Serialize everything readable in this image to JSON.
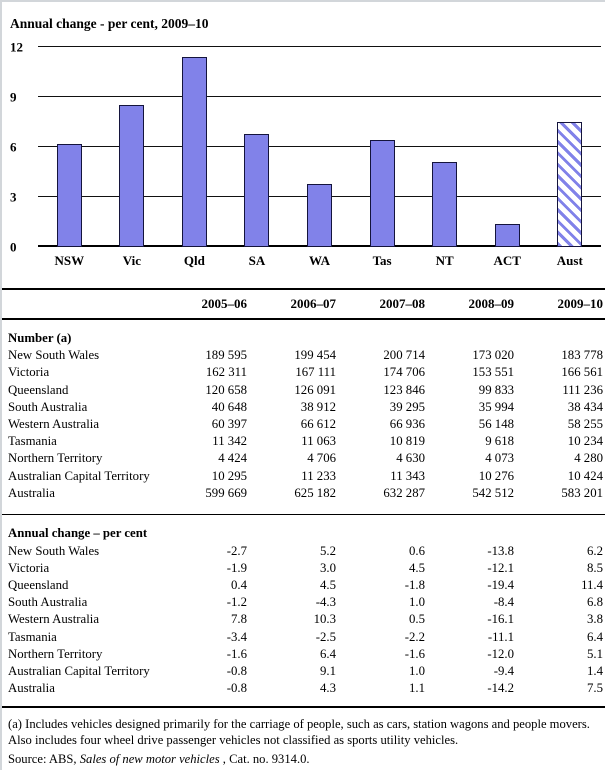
{
  "chart_data": {
    "type": "bar",
    "title": "Annual change - per cent, 2009–10",
    "categories": [
      "NSW",
      "Vic",
      "Qld",
      "SA",
      "WA",
      "Tas",
      "NT",
      "ACT",
      "Aust"
    ],
    "values": [
      6.2,
      8.5,
      11.4,
      6.8,
      3.8,
      6.4,
      5.1,
      1.4,
      7.5
    ],
    "ylim": [
      0,
      12
    ],
    "yticks": [
      0,
      3,
      6,
      9,
      12
    ],
    "xlabel": "",
    "ylabel": "",
    "grid": true,
    "legend": "none",
    "bar_color": "#8182e9",
    "hatched_category": "Aust",
    "hatch_style": "diagonal-stripes-on-white"
  },
  "table": {
    "column_headers": [
      "2005–06",
      "2006–07",
      "2007–08",
      "2008–09",
      "2009–10"
    ],
    "sections": [
      {
        "heading": "Number (a)",
        "rows": [
          {
            "label": "New South Wales",
            "values": [
              "189 595",
              "199 454",
              "200 714",
              "173 020",
              "183 778"
            ]
          },
          {
            "label": "Victoria",
            "values": [
              "162 311",
              "167 111",
              "174 706",
              "153 551",
              "166 561"
            ]
          },
          {
            "label": "Queensland",
            "values": [
              "120 658",
              "126 091",
              "123 846",
              "99 833",
              "111 236"
            ]
          },
          {
            "label": "South Australia",
            "values": [
              "40 648",
              "38 912",
              "39 295",
              "35 994",
              "38 434"
            ]
          },
          {
            "label": "Western Australia",
            "values": [
              "60 397",
              "66 612",
              "66 936",
              "56 148",
              "58 255"
            ]
          },
          {
            "label": "Tasmania",
            "values": [
              "11 342",
              "11 063",
              "10 819",
              "9 618",
              "10 234"
            ]
          },
          {
            "label": "Northern Territory",
            "values": [
              "4 424",
              "4 706",
              "4 630",
              "4 073",
              "4 280"
            ]
          },
          {
            "label": "Australian Capital Territory",
            "values": [
              "10 295",
              "11 233",
              "11 343",
              "10 276",
              "10 424"
            ]
          },
          {
            "label": "Australia",
            "values": [
              "599 669",
              "625 182",
              "632 287",
              "542 512",
              "583 201"
            ]
          }
        ]
      },
      {
        "heading": "Annual change – per cent",
        "rows": [
          {
            "label": "New South Wales",
            "values": [
              "-2.7",
              "5.2",
              "0.6",
              "-13.8",
              "6.2"
            ]
          },
          {
            "label": "Victoria",
            "values": [
              "-1.9",
              "3.0",
              "4.5",
              "-12.1",
              "8.5"
            ]
          },
          {
            "label": "Queensland",
            "values": [
              "0.4",
              "4.5",
              "-1.8",
              "-19.4",
              "11.4"
            ]
          },
          {
            "label": "South Australia",
            "values": [
              "-1.2",
              "-4.3",
              "1.0",
              "-8.4",
              "6.8"
            ]
          },
          {
            "label": "Western Australia",
            "values": [
              "7.8",
              "10.3",
              "0.5",
              "-16.1",
              "3.8"
            ]
          },
          {
            "label": "Tasmania",
            "values": [
              "-3.4",
              "-2.5",
              "-2.2",
              "-11.1",
              "6.4"
            ]
          },
          {
            "label": "Northern Territory",
            "values": [
              "-1.6",
              "6.4",
              "-1.6",
              "-12.0",
              "5.1"
            ]
          },
          {
            "label": "Australian Capital Territory",
            "values": [
              "-0.8",
              "9.1",
              "1.0",
              "-9.4",
              "1.4"
            ]
          },
          {
            "label": "Australia",
            "values": [
              "-0.8",
              "4.3",
              "1.1",
              "-14.2",
              "7.5"
            ]
          }
        ]
      }
    ]
  },
  "footnotes": {
    "note_a": "(a) Includes vehicles designed primarily for the carriage of people, such as cars, station wagons and people movers. Also includes four wheel drive passenger vehicles not classified as sports utility vehicles.",
    "source_prefix": "Source: ABS, ",
    "source_title": "Sales of new motor vehicles",
    "source_suffix": " , Cat. no. 9314.0."
  }
}
